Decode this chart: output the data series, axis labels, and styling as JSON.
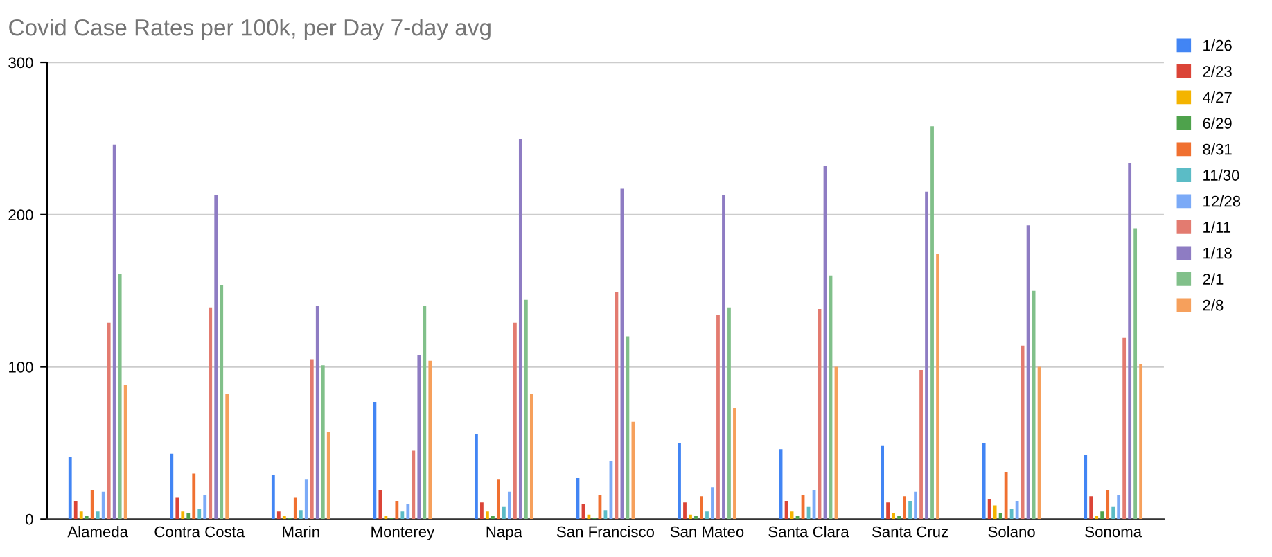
{
  "chart_data": {
    "type": "bar",
    "title": "Covid Case Rates per 100k, per Day 7-day avg",
    "categories": [
      "Alameda",
      "Contra Costa",
      "Marin",
      "Monterey",
      "Napa",
      "San Francisco",
      "San Mateo",
      "Santa Clara",
      "Santa Cruz",
      "Solano",
      "Sonoma"
    ],
    "series": [
      {
        "name": "1/26",
        "color": "#4285f4",
        "values": [
          41,
          43,
          29,
          77,
          56,
          27,
          50,
          46,
          48,
          50,
          42
        ]
      },
      {
        "name": "2/23",
        "color": "#db4437",
        "values": [
          12,
          14,
          5,
          19,
          11,
          10,
          11,
          12,
          11,
          13,
          15
        ]
      },
      {
        "name": "4/27",
        "color": "#f4b400",
        "values": [
          5,
          5,
          2,
          2,
          5,
          3,
          3,
          5,
          4,
          9,
          2
        ]
      },
      {
        "name": "6/29",
        "color": "#4ea24c",
        "values": [
          2,
          4,
          1,
          1,
          2,
          1,
          2,
          2,
          2,
          4,
          5
        ]
      },
      {
        "name": "8/31",
        "color": "#f07030",
        "values": [
          19,
          30,
          14,
          12,
          26,
          16,
          15,
          16,
          15,
          31,
          19
        ]
      },
      {
        "name": "11/30",
        "color": "#5bbcc6",
        "values": [
          5,
          7,
          6,
          5,
          8,
          6,
          5,
          8,
          12,
          7,
          8
        ]
      },
      {
        "name": "12/28",
        "color": "#7baaf7",
        "values": [
          18,
          16,
          26,
          10,
          18,
          38,
          21,
          19,
          18,
          12,
          16
        ]
      },
      {
        "name": "1/11",
        "color": "#e37b70",
        "values": [
          129,
          139,
          105,
          45,
          129,
          149,
          134,
          138,
          98,
          114,
          119
        ]
      },
      {
        "name": "1/18",
        "color": "#8e7cc3",
        "values": [
          246,
          213,
          140,
          108,
          250,
          217,
          213,
          232,
          215,
          193,
          234
        ]
      },
      {
        "name": "2/1",
        "color": "#81c08a",
        "values": [
          161,
          154,
          101,
          140,
          144,
          120,
          139,
          160,
          258,
          150,
          191
        ]
      },
      {
        "name": "2/8",
        "color": "#f6a05c",
        "values": [
          88,
          82,
          57,
          104,
          82,
          64,
          73,
          100,
          174,
          100,
          102
        ]
      }
    ],
    "ylim": [
      0,
      300
    ],
    "yticks": [
      0,
      100,
      200,
      300
    ],
    "grid": "y",
    "legend": "right"
  }
}
